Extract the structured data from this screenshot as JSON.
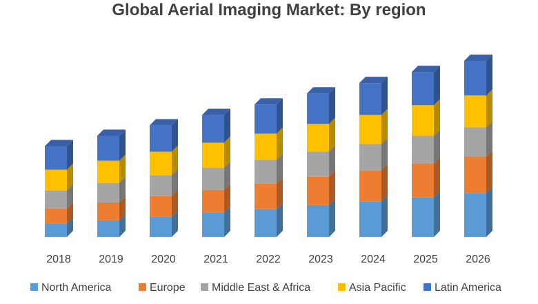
{
  "chart_data": {
    "type": "bar",
    "stacked": true,
    "style": "3d-column",
    "title": "Global Aerial Imaging Market: By region",
    "xlabel": "",
    "ylabel": "",
    "categories": [
      "2018",
      "2019",
      "2020",
      "2021",
      "2022",
      "2023",
      "2024",
      "2025",
      "2026"
    ],
    "series": [
      {
        "name": "North America",
        "color": "#5B9BD5",
        "values": [
          19,
          24,
          29,
          35,
          40,
          46,
          51,
          57,
          63
        ]
      },
      {
        "name": "Europe",
        "color": "#ED7D31",
        "values": [
          22,
          26,
          30,
          33,
          37,
          41,
          45,
          49,
          53
        ]
      },
      {
        "name": "Middle East & Africa",
        "color": "#A5A5A5",
        "values": [
          26,
          28,
          30,
          32,
          34,
          36,
          38,
          40,
          42
        ]
      },
      {
        "name": "Asia Pacific",
        "color": "#FFC000",
        "values": [
          30,
          32,
          34,
          36,
          38,
          40,
          42,
          44,
          46
        ]
      },
      {
        "name": "Latin America",
        "color": "#4472C4",
        "values": [
          34,
          36,
          38,
          40,
          42,
          44,
          46,
          48,
          50
        ]
      }
    ],
    "ylim": [
      0,
      260
    ],
    "grid": false,
    "y_axis_visible": false,
    "legend": "bottom"
  }
}
